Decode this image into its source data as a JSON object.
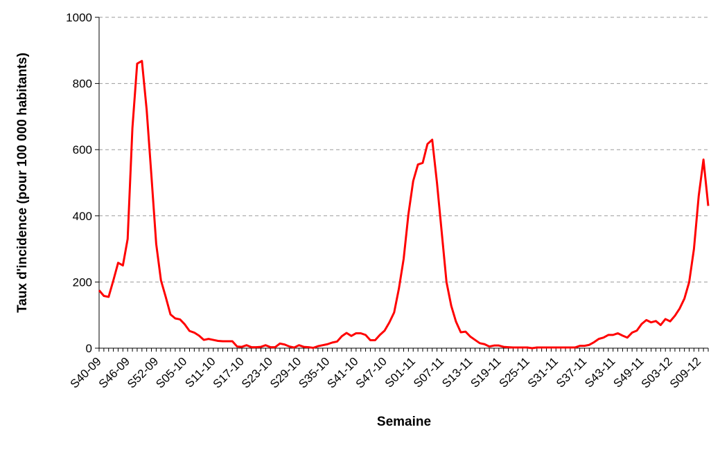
{
  "chart_data": {
    "type": "line",
    "xlabel": "Semaine",
    "ylabel": "Taux d'incidence (pour 100 000 habitants)",
    "ylim": [
      0,
      1000
    ],
    "yticks": [
      0,
      200,
      400,
      600,
      800,
      1000
    ],
    "grid": "horizontal dashed",
    "legend": "none",
    "line_color": "#ff0000",
    "x_tick_labels": [
      "S40-09",
      "S46-09",
      "S52-09",
      "S05-10",
      "S11-10",
      "S17-10",
      "S23-10",
      "S29-10",
      "S35-10",
      "S41-10",
      "S47-10",
      "S01-11",
      "S07-11",
      "S13-11",
      "S19-11",
      "S25-11",
      "S31-11",
      "S37-11",
      "S43-11",
      "S49-11",
      "S03-12",
      "S09-12"
    ],
    "series": [
      {
        "values": [
          175,
          158,
          155,
          205,
          258,
          250,
          330,
          665,
          860,
          868,
          720,
          520,
          315,
          205,
          155,
          102,
          90,
          87,
          72,
          52,
          47,
          38,
          25,
          28,
          25,
          22,
          21,
          21,
          21,
          5,
          4,
          9,
          3,
          3,
          4,
          9,
          3,
          3,
          14,
          11,
          5,
          2,
          9,
          4,
          3,
          1,
          6,
          9,
          12,
          17,
          20,
          36,
          46,
          37,
          45,
          45,
          40,
          24,
          24,
          40,
          53,
          78,
          108,
          180,
          270,
          405,
          505,
          555,
          560,
          617,
          630,
          500,
          350,
          200,
          128,
          80,
          48,
          50,
          35,
          25,
          15,
          12,
          5,
          8,
          8,
          4,
          3,
          2,
          2,
          2,
          2,
          0,
          2,
          2,
          2,
          2,
          2,
          2,
          2,
          2,
          2,
          7,
          7,
          10,
          18,
          28,
          32,
          40,
          40,
          45,
          38,
          32,
          47,
          53,
          73,
          85,
          78,
          82,
          70,
          88,
          81,
          98,
          120,
          150,
          200,
          300,
          460,
          570,
          430
        ]
      }
    ]
  }
}
